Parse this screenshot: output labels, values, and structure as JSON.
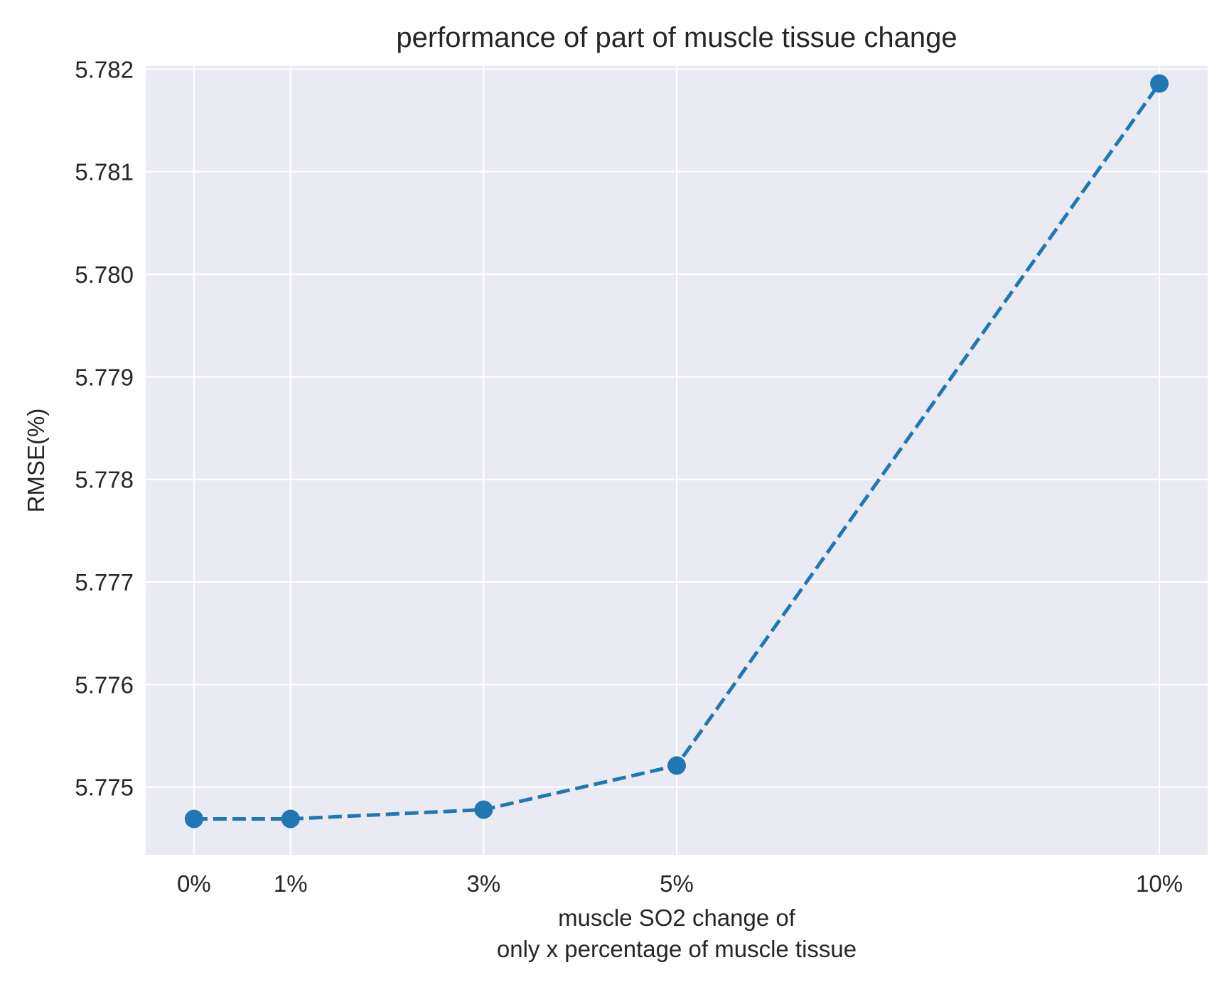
{
  "chart_data": {
    "type": "line",
    "title": "performance of part of muscle tissue change",
    "xlabel": [
      "muscle SO2 change of",
      "only x percentage of muscle tissue"
    ],
    "ylabel": "RMSE(%)",
    "x": [
      0,
      1,
      3,
      5,
      10
    ],
    "x_tick_labels": [
      "0%",
      "1%",
      "3%",
      "5%",
      "10%"
    ],
    "y_ticks": [
      5.775,
      5.776,
      5.777,
      5.778,
      5.779,
      5.78,
      5.781,
      5.782
    ],
    "y_tick_labels": [
      "5.775",
      "5.776",
      "5.777",
      "5.778",
      "5.779",
      "5.780",
      "5.781",
      "5.782"
    ],
    "xlim": [
      -0.5,
      10.5
    ],
    "ylim": [
      5.77434,
      5.78203
    ],
    "grid": true,
    "series": [
      {
        "values": [
          5.77469,
          5.77469,
          5.77478,
          5.77521,
          5.78186
        ],
        "line_style": "dashed",
        "marker": "circle",
        "color": "#1f77b4"
      }
    ],
    "colors": {
      "plot_bg": "#eaeaf2",
      "grid": "#ffffff",
      "line": "#1f77b4",
      "text": "#262626"
    }
  }
}
